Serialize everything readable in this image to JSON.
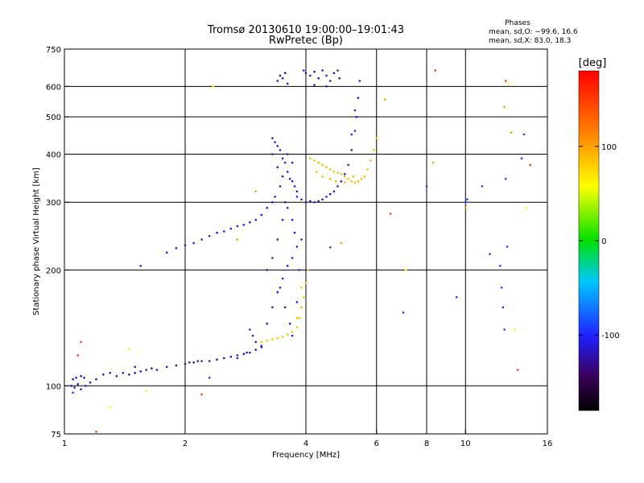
{
  "chart_data": {
    "type": "scatter",
    "title": "Tromsø 20130610 19:00:00–19:01:43",
    "subtitle": "RwPretec (Bp)",
    "stats_header": "Phases",
    "stats_lines": [
      "mean, sd,O: −99.6, 16.6",
      "mean, sd,X:  83.0, 18.3"
    ],
    "xlabel": "Frequency [MHz]",
    "ylabel": "Stationary phase Virtual Height [km]",
    "x_scale": "log",
    "y_scale": "log",
    "xlim": [
      1,
      16
    ],
    "ylim": [
      75,
      750
    ],
    "x_ticks": [
      1,
      2,
      4,
      6,
      8,
      10,
      16
    ],
    "y_ticks": [
      75,
      100,
      200,
      300,
      400,
      500,
      600,
      750
    ],
    "x_gridlines": [
      2,
      4,
      6,
      8,
      10
    ],
    "y_gridlines": [
      100,
      200,
      300,
      400,
      500,
      600
    ],
    "colorbar": {
      "label": "[deg]",
      "range": [
        -180,
        180
      ],
      "ticks": [
        100,
        0,
        -100
      ]
    },
    "series": [
      {
        "phase": -120,
        "points": [
          [
            1.04,
            100
          ],
          [
            1.06,
            99
          ],
          [
            1.08,
            101
          ],
          [
            1.1,
            98
          ],
          [
            1.13,
            100
          ],
          [
            1.16,
            102
          ],
          [
            1.2,
            104
          ],
          [
            1.25,
            107
          ],
          [
            1.3,
            108
          ],
          [
            1.35,
            106
          ],
          [
            1.4,
            108
          ],
          [
            1.45,
            107
          ],
          [
            1.5,
            108
          ],
          [
            1.55,
            109
          ],
          [
            1.6,
            110
          ],
          [
            1.7,
            110
          ],
          [
            1.8,
            112
          ],
          [
            1.9,
            113
          ],
          [
            2.0,
            114
          ],
          [
            2.1,
            115
          ],
          [
            2.2,
            116
          ],
          [
            2.3,
            116
          ],
          [
            2.4,
            117
          ],
          [
            2.5,
            118
          ],
          [
            2.6,
            119
          ],
          [
            2.7,
            120
          ],
          [
            2.8,
            121
          ],
          [
            2.9,
            122
          ],
          [
            3.0,
            124
          ],
          [
            3.1,
            127
          ],
          [
            1.05,
            104
          ],
          [
            1.07,
            105
          ],
          [
            1.1,
            106
          ],
          [
            1.12,
            105
          ],
          [
            1.5,
            112
          ],
          [
            1.65,
            111
          ],
          [
            2.05,
            115
          ],
          [
            2.15,
            116
          ],
          [
            2.7,
            118
          ],
          [
            2.85,
            122
          ]
        ]
      },
      {
        "phase": -110,
        "points": [
          [
            2.0,
            232
          ],
          [
            2.1,
            235
          ],
          [
            2.2,
            240
          ],
          [
            2.3,
            245
          ],
          [
            2.4,
            250
          ],
          [
            2.5,
            252
          ],
          [
            2.6,
            256
          ],
          [
            2.7,
            260
          ],
          [
            2.8,
            262
          ],
          [
            2.9,
            266
          ],
          [
            3.0,
            270
          ],
          [
            3.1,
            278
          ],
          [
            3.2,
            290
          ],
          [
            3.3,
            300
          ],
          [
            1.8,
            222
          ],
          [
            1.9,
            228
          ],
          [
            1.55,
            205
          ]
        ]
      },
      {
        "phase": -110,
        "points": [
          [
            2.9,
            140
          ],
          [
            2.95,
            135
          ],
          [
            3.0,
            130
          ],
          [
            3.1,
            126
          ],
          [
            3.2,
            145
          ],
          [
            3.3,
            160
          ],
          [
            3.4,
            175
          ],
          [
            3.5,
            190
          ],
          [
            3.6,
            205
          ],
          [
            3.7,
            215
          ],
          [
            3.8,
            230
          ],
          [
            3.75,
            250
          ],
          [
            3.6,
            290
          ],
          [
            3.5,
            270
          ],
          [
            3.4,
            240
          ],
          [
            3.3,
            215
          ],
          [
            3.2,
            200
          ],
          [
            3.45,
            180
          ],
          [
            3.55,
            160
          ],
          [
            3.65,
            145
          ],
          [
            3.7,
            135
          ],
          [
            3.8,
            165
          ],
          [
            3.85,
            200
          ],
          [
            3.9,
            240
          ],
          [
            3.7,
            270
          ]
        ]
      },
      {
        "phase": -115,
        "points": [
          [
            3.3,
            440
          ],
          [
            3.35,
            430
          ],
          [
            3.4,
            420
          ],
          [
            3.45,
            410
          ],
          [
            3.5,
            390
          ],
          [
            3.55,
            380
          ],
          [
            3.6,
            360
          ],
          [
            3.65,
            345
          ],
          [
            3.7,
            340
          ],
          [
            3.75,
            330
          ],
          [
            3.8,
            320
          ],
          [
            3.5,
            350
          ],
          [
            3.4,
            370
          ],
          [
            3.6,
            400
          ],
          [
            3.7,
            380
          ],
          [
            3.3,
            400
          ],
          [
            3.45,
            330
          ],
          [
            3.35,
            310
          ],
          [
            3.55,
            300
          ],
          [
            3.8,
            310
          ],
          [
            3.9,
            305
          ],
          [
            4.0,
            300
          ],
          [
            4.1,
            302
          ],
          [
            4.2,
            300
          ],
          [
            4.3,
            302
          ],
          [
            4.4,
            305
          ],
          [
            4.5,
            310
          ],
          [
            4.6,
            315
          ],
          [
            4.7,
            320
          ],
          [
            4.8,
            330
          ],
          [
            4.9,
            340
          ],
          [
            5.0,
            355
          ],
          [
            5.1,
            375
          ],
          [
            5.2,
            410
          ],
          [
            5.3,
            460
          ],
          [
            5.35,
            500
          ],
          [
            5.4,
            560
          ],
          [
            5.45,
            620
          ],
          [
            5.3,
            520
          ],
          [
            5.2,
            450
          ]
        ]
      },
      {
        "phase": -120,
        "points": [
          [
            3.4,
            620
          ],
          [
            3.45,
            640
          ],
          [
            3.5,
            630
          ],
          [
            3.55,
            650
          ],
          [
            3.6,
            610
          ],
          [
            3.95,
            660
          ],
          [
            4.0,
            650
          ],
          [
            4.1,
            640
          ],
          [
            4.2,
            655
          ],
          [
            4.3,
            630
          ],
          [
            4.4,
            660
          ],
          [
            4.5,
            640
          ],
          [
            4.6,
            620
          ],
          [
            4.7,
            650
          ],
          [
            4.8,
            660
          ],
          [
            4.85,
            630
          ],
          [
            4.5,
            600
          ],
          [
            4.2,
            605
          ]
        ]
      },
      {
        "phase": 90,
        "points": [
          [
            4.1,
            390
          ],
          [
            4.2,
            385
          ],
          [
            4.3,
            380
          ],
          [
            4.4,
            375
          ],
          [
            4.5,
            370
          ],
          [
            4.6,
            365
          ],
          [
            4.7,
            360
          ],
          [
            4.8,
            358
          ],
          [
            4.9,
            355
          ],
          [
            5.0,
            350
          ],
          [
            5.1,
            345
          ],
          [
            5.2,
            340
          ],
          [
            5.3,
            338
          ],
          [
            5.4,
            340
          ],
          [
            5.5,
            345
          ],
          [
            5.6,
            350
          ],
          [
            5.7,
            365
          ],
          [
            5.8,
            385
          ],
          [
            5.9,
            410
          ],
          [
            6.0,
            440
          ],
          [
            4.25,
            360
          ],
          [
            4.4,
            350
          ],
          [
            4.6,
            345
          ],
          [
            4.75,
            340
          ],
          [
            5.0,
            338
          ],
          [
            5.25,
            350
          ]
        ]
      },
      {
        "phase": 85,
        "points": [
          [
            3.1,
            130
          ],
          [
            3.2,
            131
          ],
          [
            3.3,
            132
          ],
          [
            3.4,
            133
          ],
          [
            3.5,
            134
          ],
          [
            3.6,
            136
          ],
          [
            3.7,
            138
          ],
          [
            3.8,
            142
          ],
          [
            3.85,
            150
          ],
          [
            3.9,
            160
          ],
          [
            3.95,
            170
          ],
          [
            4.0,
            185
          ],
          [
            4.05,
            200
          ],
          [
            3.9,
            180
          ],
          [
            3.8,
            150
          ]
        ]
      },
      {
        "phase": 100,
        "points": [
          [
            8.3,
            380
          ],
          [
            10.0,
            290
          ],
          [
            12.5,
            530
          ],
          [
            13.0,
            455
          ],
          [
            6.3,
            555
          ],
          [
            3.0,
            320
          ],
          [
            4.9,
            235
          ],
          [
            2.7,
            240
          ]
        ]
      },
      {
        "phase": -90,
        "points": [
          [
            10.0,
            300
          ],
          [
            10.1,
            305
          ],
          [
            12.2,
            205
          ],
          [
            12.3,
            180
          ],
          [
            12.4,
            160
          ],
          [
            12.5,
            140
          ],
          [
            12.6,
            345
          ],
          [
            12.7,
            230
          ],
          [
            14.0,
            450
          ],
          [
            13.8,
            390
          ],
          [
            7.0,
            155
          ],
          [
            8.0,
            330
          ],
          [
            9.5,
            170
          ],
          [
            11.0,
            330
          ],
          [
            11.5,
            220
          ],
          [
            4.6,
            229
          ],
          [
            2.3,
            105
          ],
          [
            1.05,
            96
          ]
        ]
      },
      {
        "phase": 150,
        "points": [
          [
            1.2,
            76
          ],
          [
            2.2,
            95
          ],
          [
            13.5,
            110
          ],
          [
            8.4,
            660
          ],
          [
            14.5,
            375
          ],
          [
            12.6,
            620
          ],
          [
            6.5,
            280
          ],
          [
            1.08,
            120
          ],
          [
            1.1,
            130
          ]
        ]
      },
      {
        "phase": 60,
        "points": [
          [
            1.3,
            88
          ],
          [
            1.45,
            125
          ],
          [
            1.6,
            97
          ],
          [
            12.8,
            610
          ],
          [
            13.3,
            140
          ],
          [
            2.35,
            600
          ],
          [
            7.1,
            200
          ],
          [
            14.2,
            290
          ]
        ]
      }
    ]
  }
}
